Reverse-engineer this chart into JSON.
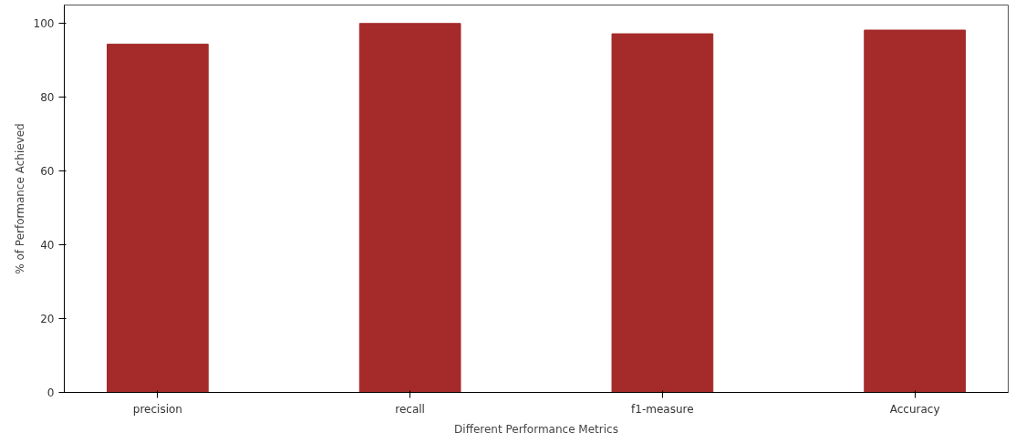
{
  "chart_data": {
    "type": "bar",
    "xlabel": "Different Performance Metrics",
    "ylabel": "% of Performance Achieved",
    "categories": [
      "precision",
      "recall",
      "f1-measure",
      "Accuracy"
    ],
    "values": [
      94.4,
      100,
      97.2,
      98.2
    ],
    "color": "#a52a2a",
    "ylim": [
      0,
      105
    ],
    "yticks": [
      0,
      20,
      40,
      60,
      80,
      100
    ],
    "grid": false
  }
}
